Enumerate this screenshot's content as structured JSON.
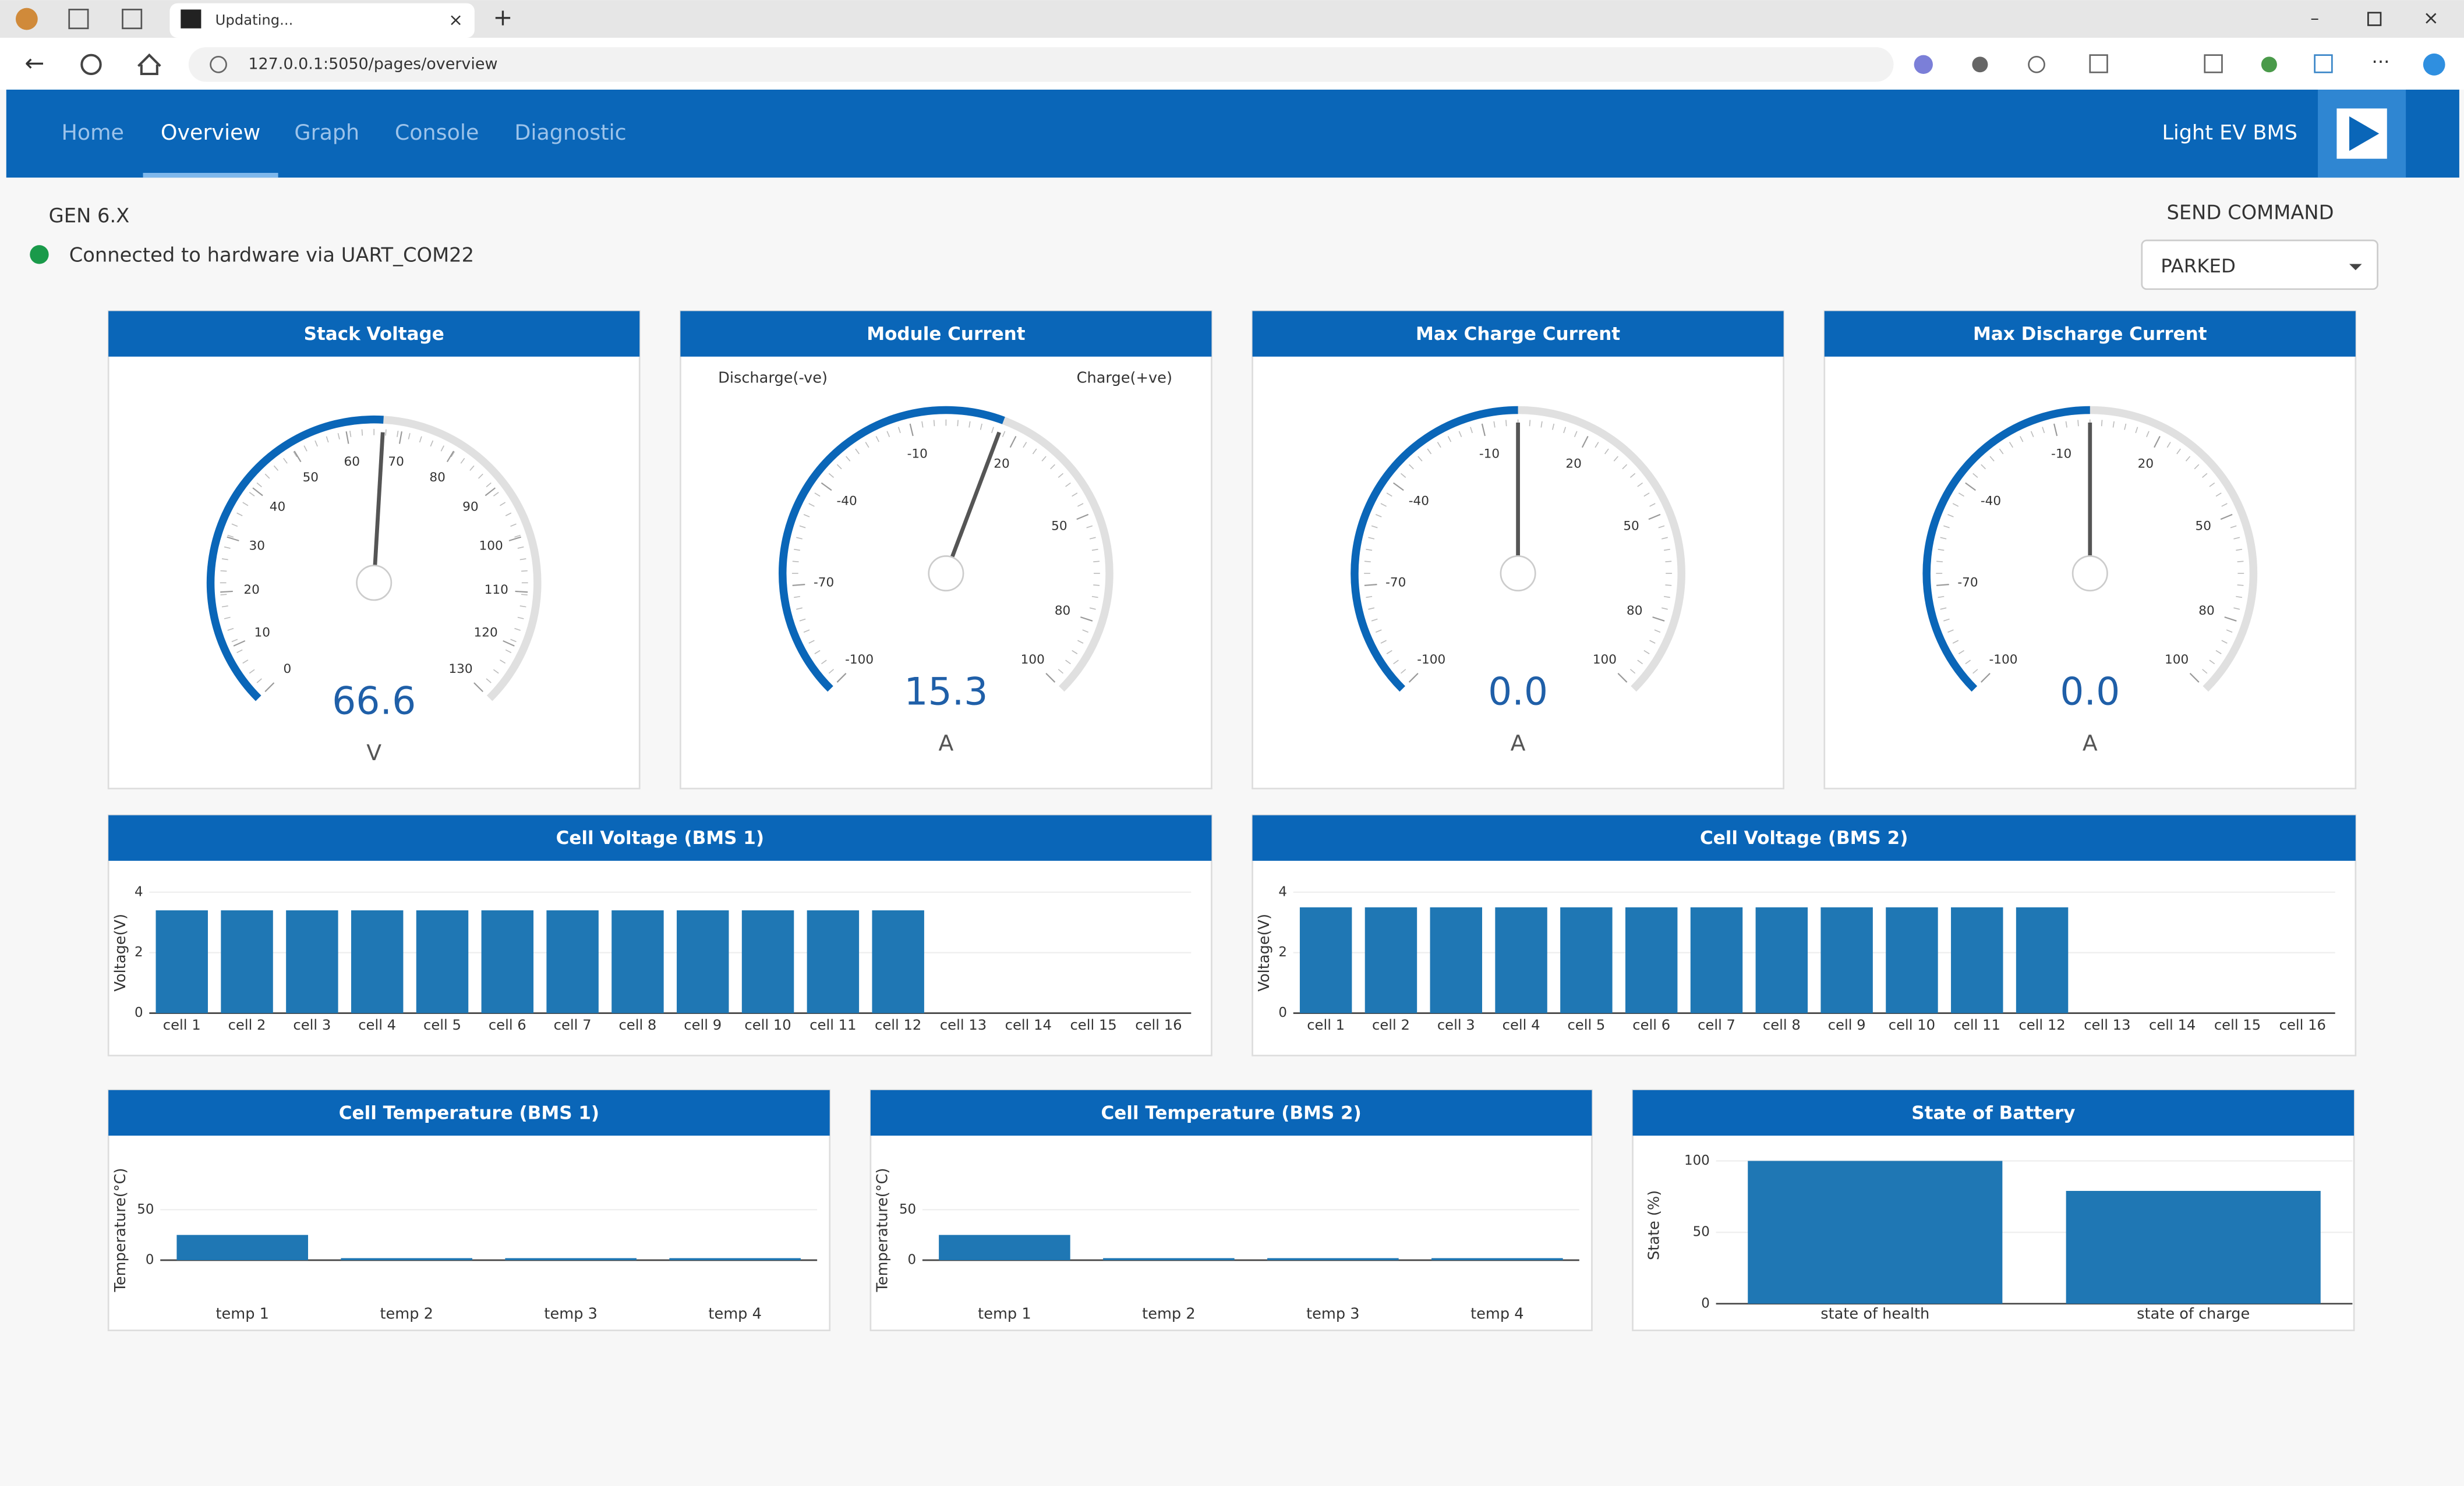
{
  "browser": {
    "tab_title": "Updating...",
    "url": "127.0.0.1:5050/pages/overview"
  },
  "nav": {
    "links": [
      "Home",
      "Overview",
      "Graph",
      "Console",
      "Diagnostic"
    ],
    "brand": "Light EV BMS"
  },
  "status": {
    "version": "GEN 6.X",
    "connection": "Connected to hardware via UART_COM22"
  },
  "command": {
    "label": "SEND COMMAND",
    "selected": "PARKED"
  },
  "gauges": [
    {
      "type": "gauge",
      "title": "Stack Voltage",
      "value": 66.6,
      "unit": "V",
      "range": [
        0,
        130
      ],
      "ticks": [
        0,
        10,
        20,
        30,
        40,
        50,
        60,
        70,
        80,
        90,
        100,
        110,
        120,
        130
      ]
    },
    {
      "type": "gauge",
      "title": "Module Current",
      "value": 15.3,
      "unit": "A",
      "range": [
        -100,
        100
      ],
      "ticks": [
        -100,
        -70,
        -40,
        -10,
        20,
        50,
        80,
        100
      ],
      "left_label": "Discharge(-ve)",
      "right_label": "Charge(+ve)"
    },
    {
      "type": "gauge",
      "title": "Max Charge Current",
      "value": 0,
      "value_label": "0.0",
      "unit": "A",
      "range": [
        -100,
        100
      ],
      "ticks": [
        -100,
        -70,
        -40,
        -10,
        20,
        50,
        80,
        100
      ]
    },
    {
      "type": "gauge",
      "title": "Max Discharge Current",
      "value": 0,
      "value_label": "0.0",
      "unit": "A",
      "range": [
        -100,
        100
      ],
      "ticks": [
        -100,
        -70,
        -40,
        -10,
        20,
        50,
        80,
        100
      ]
    }
  ],
  "bar_charts": [
    {
      "type": "bar",
      "title": "Cell Voltage (BMS 1)",
      "y_label": "Voltage(V)",
      "color": "#1f77b4",
      "ylim": [
        0,
        4
      ],
      "yticks": [
        0,
        2,
        4
      ],
      "categories": [
        "cell 1",
        "cell 2",
        "cell 3",
        "cell 4",
        "cell 5",
        "cell 6",
        "cell 7",
        "cell 8",
        "cell 9",
        "cell 10",
        "cell 11",
        "cell 12",
        "cell 13",
        "cell 14",
        "cell 15",
        "cell 16"
      ],
      "values": [
        3.4,
        3.4,
        3.4,
        3.4,
        3.4,
        3.4,
        3.4,
        3.4,
        3.4,
        3.4,
        3.4,
        3.4,
        0,
        0,
        0,
        0
      ]
    },
    {
      "type": "bar",
      "title": "Cell Voltage (BMS 2)",
      "y_label": "Voltage(V)",
      "color": "#1f77b4",
      "ylim": [
        0,
        4
      ],
      "yticks": [
        0,
        2,
        4
      ],
      "categories": [
        "cell 1",
        "cell 2",
        "cell 3",
        "cell 4",
        "cell 5",
        "cell 6",
        "cell 7",
        "cell 8",
        "cell 9",
        "cell 10",
        "cell 11",
        "cell 12",
        "cell 13",
        "cell 14",
        "cell 15",
        "cell 16"
      ],
      "values": [
        3.5,
        3.5,
        3.5,
        3.5,
        3.5,
        3.5,
        3.5,
        3.5,
        3.5,
        3.5,
        3.5,
        3.5,
        0,
        0,
        0,
        0
      ]
    },
    {
      "type": "bar",
      "title": "Cell Temperature (BMS 1)",
      "y_label": "Temperature(°C)",
      "color": "#1f77b4",
      "ylim": [
        -40,
        100
      ],
      "yticks": [
        0,
        50
      ],
      "categories": [
        "temp 1",
        "temp 2",
        "temp 3",
        "temp 4"
      ],
      "values": [
        25,
        2,
        2,
        2
      ]
    },
    {
      "type": "bar",
      "title": "Cell Temperature (BMS 2)",
      "y_label": "Temperature(°C)",
      "color": "#1f77b4",
      "ylim": [
        -40,
        100
      ],
      "yticks": [
        0,
        50
      ],
      "categories": [
        "temp 1",
        "temp 2",
        "temp 3",
        "temp 4"
      ],
      "values": [
        25,
        2,
        2,
        2
      ]
    },
    {
      "type": "bar",
      "title": "State of Battery",
      "y_label": "State (%)",
      "color": "#1f77b4",
      "ylim": [
        0,
        110
      ],
      "yticks": [
        0,
        50,
        100
      ],
      "categories": [
        "state of health",
        "state of charge"
      ],
      "values": [
        100,
        79
      ]
    }
  ]
}
